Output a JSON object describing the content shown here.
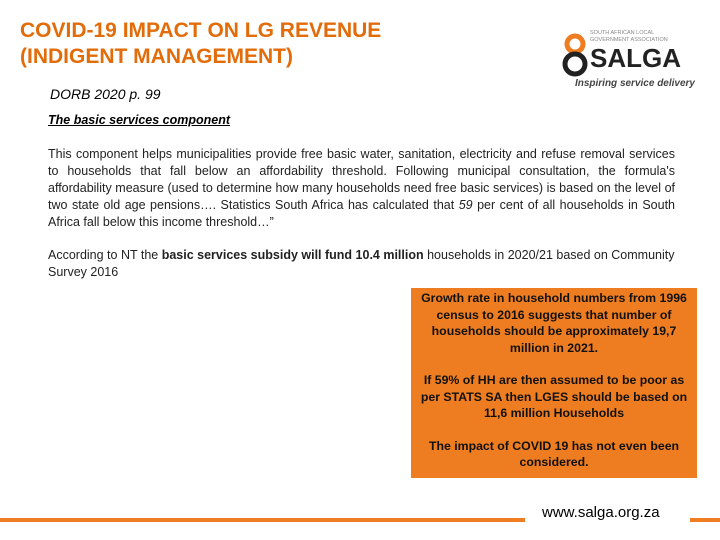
{
  "header": {
    "title_lines": [
      "COVID-19 IMPACT ON LG REVENUE",
      "(INDIGENT MANAGEMENT)"
    ],
    "subtitle": "DORB 2020 p. 99"
  },
  "logo": {
    "tagline_top": "SOUTH AFRICAN LOCAL GOVERNMENT ASSOCIATION",
    "name": "SALGA",
    "slogan": "Inspiring service delivery"
  },
  "body": {
    "heading": "The basic services component",
    "paragraph_1": [
      "This component helps municipalities provide free basic water, sanitation, electricity and refuse removal services to households that fall below an affordability threshold. Following municipal consultation, the formula's affordability measure (used to determine how many households need free basic services) is based on the level of two state old age pensions…. Statistics South Africa has calculated that ",
      "59",
      " per cent of all households in South Africa fall below this income threshold…”"
    ],
    "paragraph_2": [
      "According to NT the ",
      "basic services subsidy will fund 10.4 million",
      " households in 2020/21 based on Community Survey 2016"
    ]
  },
  "callout": {
    "paragraphs": [
      "Growth rate in household numbers from 1996 census to 2016 suggests that number of households should be approximately 19,7 million in 2021.",
      "If 59% of HH are then assumed to be poor as per STATS SA then LGES should be based on 11,6 million Households",
      "The impact of COVID 19 has not even been considered."
    ]
  },
  "footer": {
    "url": "www.salga.org.za"
  }
}
